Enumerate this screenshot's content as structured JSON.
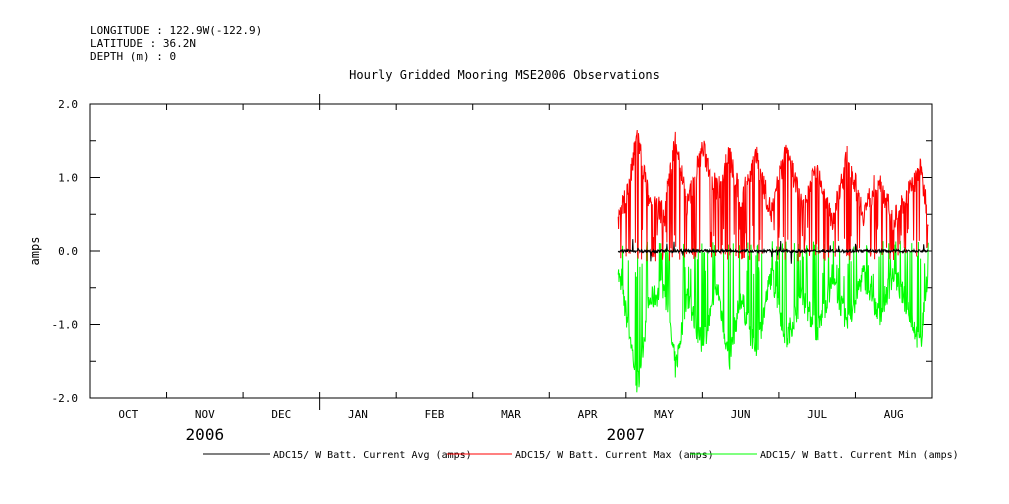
{
  "header": {
    "longitude": "LONGITUDE : 122.9W(-122.9)",
    "latitude": "LATITUDE : 36.2N",
    "depth": "DEPTH (m) : 0"
  },
  "chart_data": {
    "type": "line",
    "title": "Hourly Gridded Mooring MSE2006 Observations",
    "xlabel": "",
    "ylabel": "amps",
    "ylim": [
      -2.0,
      2.0
    ],
    "yticks": [
      {
        "value": 2.0,
        "label": "2.0"
      },
      {
        "value": 1.0,
        "label": "1.0"
      },
      {
        "value": 0.0,
        "label": "0.0"
      },
      {
        "value": -1.0,
        "label": "-1.0"
      },
      {
        "value": -2.0,
        "label": "-2.0"
      }
    ],
    "xlim_months": [
      0,
      11
    ],
    "months": [
      "OCT",
      "NOV",
      "DEC",
      "JAN",
      "FEB",
      "MAR",
      "APR",
      "MAY",
      "JUN",
      "JUL",
      "AUG"
    ],
    "years": [
      {
        "label": "2006",
        "month_pos": 1.5
      },
      {
        "label": "2007",
        "month_pos": 7.0
      }
    ],
    "data_start_month": 6.9,
    "data_end_month": 10.95,
    "series": [
      {
        "name": "ADC15/ W Batt. Current Avg (amps)",
        "color": "#000000",
        "x": [
          6.9,
          7.2,
          7.6,
          8.0,
          8.4,
          8.8,
          9.2,
          9.6,
          10.0,
          10.4,
          10.95
        ],
        "y": [
          0.0,
          0.0,
          0.0,
          0.0,
          0.0,
          0.0,
          0.0,
          0.0,
          0.0,
          0.0,
          0.0
        ]
      },
      {
        "name": "ADC15/ W Batt. Current Max (amps)",
        "color": "#ff0000",
        "x": [
          6.9,
          7.05,
          7.15,
          7.3,
          7.5,
          7.65,
          7.8,
          8.0,
          8.2,
          8.35,
          8.5,
          8.7,
          8.9,
          9.1,
          9.3,
          9.5,
          9.7,
          9.9,
          10.1,
          10.3,
          10.5,
          10.7,
          10.85,
          10.95
        ],
        "y": [
          0.4,
          0.9,
          1.6,
          0.7,
          0.5,
          1.55,
          0.6,
          1.4,
          0.8,
          1.3,
          0.7,
          1.3,
          0.5,
          1.4,
          0.6,
          1.2,
          0.4,
          1.3,
          0.5,
          1.0,
          0.4,
          0.8,
          1.1,
          0.5
        ]
      },
      {
        "name": "ADC15/ W Batt. Current Min (amps)",
        "color": "#00ff00",
        "x": [
          6.9,
          7.05,
          7.15,
          7.3,
          7.5,
          7.65,
          7.8,
          8.0,
          8.2,
          8.35,
          8.5,
          8.7,
          8.9,
          9.1,
          9.3,
          9.5,
          9.7,
          9.9,
          10.1,
          10.3,
          10.5,
          10.7,
          10.85,
          10.95
        ],
        "y": [
          -0.3,
          -1.1,
          -1.85,
          -0.7,
          -0.5,
          -1.6,
          -0.6,
          -1.3,
          -0.5,
          -1.5,
          -0.6,
          -1.4,
          -0.3,
          -1.2,
          -0.6,
          -1.1,
          -0.4,
          -1.0,
          -0.3,
          -0.9,
          -0.3,
          -0.8,
          -1.3,
          -0.2
        ]
      }
    ]
  }
}
